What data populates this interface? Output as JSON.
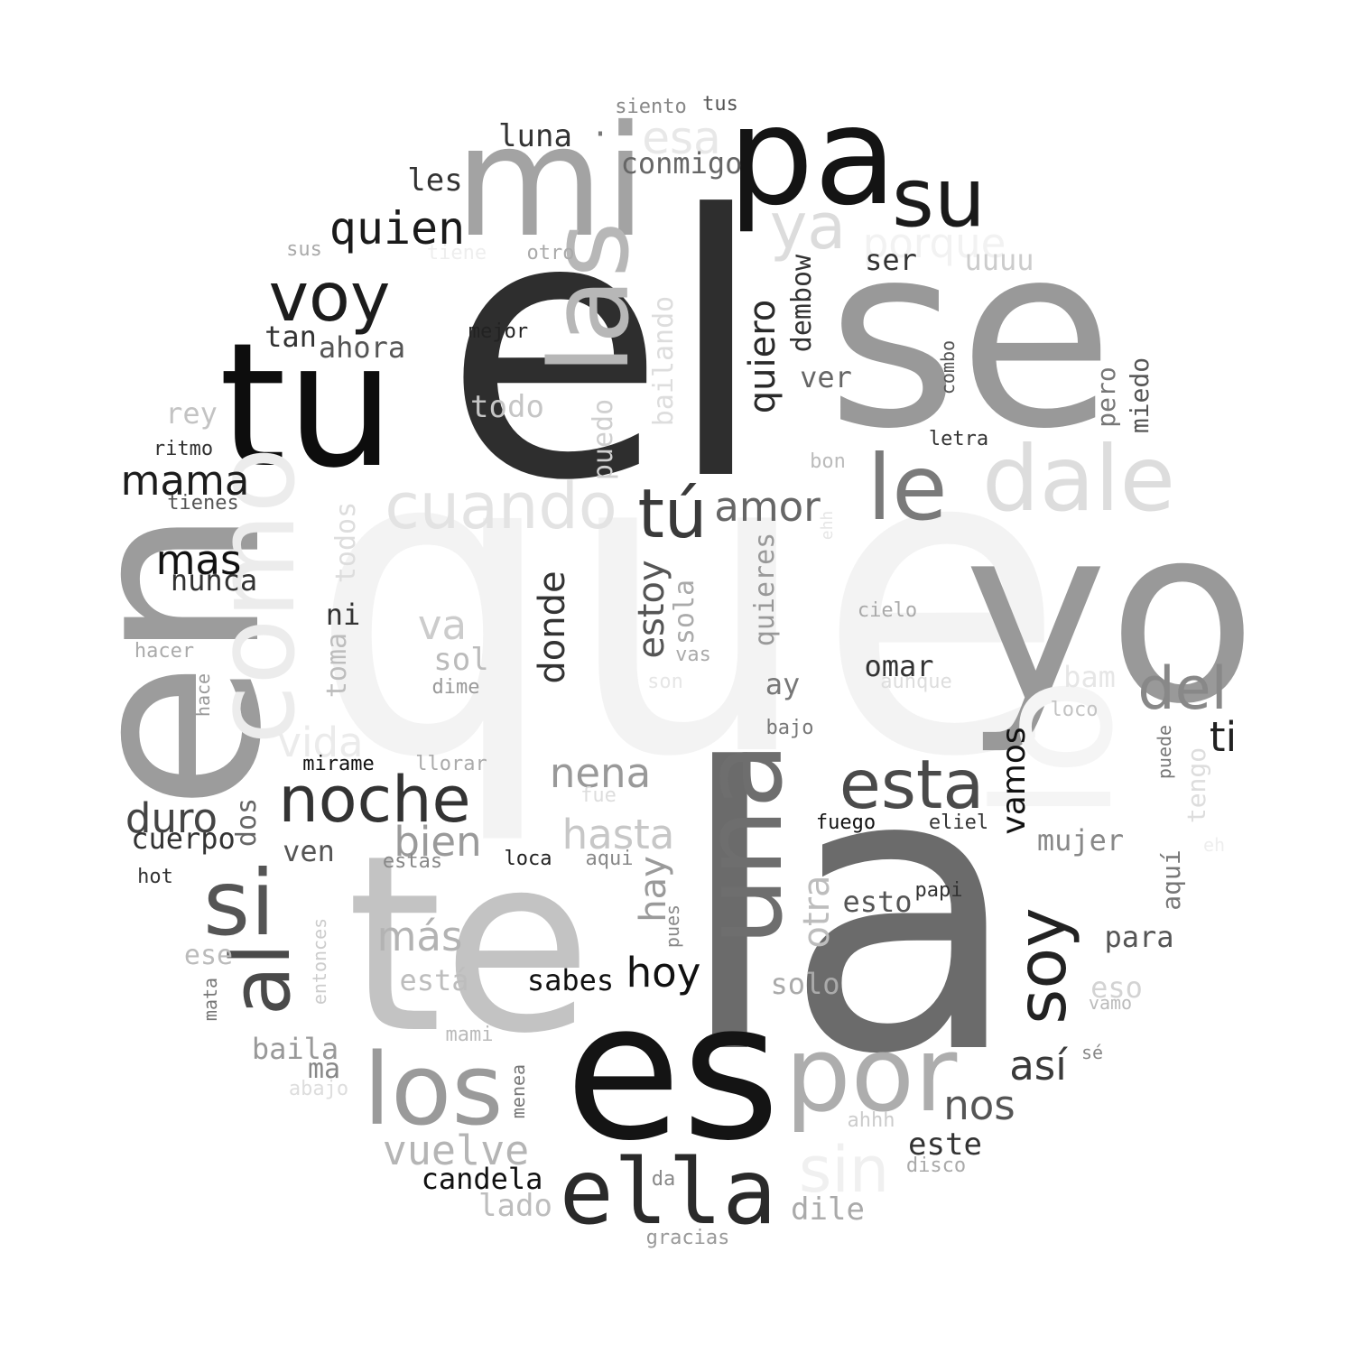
{
  "words": [
    {
      "t": "que",
      "c": "#f3f3f3"
    },
    {
      "t": "el",
      "c": "#2e2e2e"
    },
    {
      "t": "la",
      "c": "#6b6b6b"
    },
    {
      "t": "yo",
      "c": "#999999"
    },
    {
      "t": "se",
      "c": "#999999"
    },
    {
      "t": "en",
      "c": "#9c9c9c"
    },
    {
      "t": "te",
      "c": "#c3c3c3"
    },
    {
      "t": "tu",
      "c": "#0d0d0d"
    },
    {
      "t": "es",
      "c": "#141414"
    },
    {
      "t": "mi",
      "c": "#a3a3a3"
    },
    {
      "t": "pa",
      "c": "#141414"
    },
    {
      "t": "lo",
      "c": "#f5f5f5"
    },
    {
      "t": "como",
      "c": "#ececec"
    },
    {
      "t": "las",
      "c": "#b7b7b7"
    },
    {
      "t": "una",
      "c": "#6e6e6e"
    },
    {
      "t": "por",
      "c": "#adadad"
    },
    {
      "t": "los",
      "c": "#9a9a9a"
    },
    {
      "t": "ella",
      "c": "#2a2a2a"
    },
    {
      "t": "dale",
      "c": "#dddddd"
    },
    {
      "t": "le",
      "c": "#7a7a7a"
    },
    {
      "t": "su",
      "c": "#1a1a1a"
    },
    {
      "t": "si",
      "c": "#555555"
    },
    {
      "t": "al",
      "c": "#4a4a4a"
    },
    {
      "t": "cuando",
      "c": "#e3e3e3"
    },
    {
      "t": "ya",
      "c": "#dcdcdc"
    },
    {
      "t": "voy",
      "c": "#1c1c1c"
    },
    {
      "t": "esta",
      "c": "#4a4a4a"
    },
    {
      "t": "noche",
      "c": "#333333"
    },
    {
      "t": "tú",
      "c": "#3a3a3a"
    },
    {
      "t": "soy",
      "c": "#222222"
    },
    {
      "t": "del",
      "c": "#888888"
    },
    {
      "t": "quien",
      "c": "#1a1a1a"
    },
    {
      "t": "esa",
      "c": "#e8e8e8"
    },
    {
      "t": "porque",
      "c": "#f2f2f2"
    },
    {
      "t": "sin",
      "c": "#f0f0f0"
    },
    {
      "t": "mama",
      "c": "#1c1c1c"
    },
    {
      "t": "amor",
      "c": "#666666"
    },
    {
      "t": "mas",
      "c": "#111111"
    },
    {
      "t": "vuelve",
      "c": "#b5b5b5"
    },
    {
      "t": "donde",
      "c": "#333333"
    },
    {
      "t": "estoy",
      "c": "#555555"
    },
    {
      "t": "quiero",
      "c": "#2a2a2a"
    },
    {
      "t": "duro",
      "c": "#444444"
    },
    {
      "t": "hasta",
      "c": "#c7c7c7"
    },
    {
      "t": "bien",
      "c": "#9a9a9a"
    },
    {
      "t": "nena",
      "c": "#999999"
    },
    {
      "t": "vida",
      "c": "#ebebeb"
    },
    {
      "t": "así",
      "c": "#3a3a3a"
    },
    {
      "t": "nos",
      "c": "#555555"
    },
    {
      "t": "hoy",
      "c": "#111111"
    },
    {
      "t": "va",
      "c": "#cccccc"
    },
    {
      "t": "más",
      "c": "#b3b3b3"
    },
    {
      "t": "hay",
      "c": "#9a9a9a"
    },
    {
      "t": "otra",
      "c": "#bdbdbd"
    },
    {
      "t": "vamos",
      "c": "#111111"
    },
    {
      "t": "ti",
      "c": "#222222"
    },
    {
      "t": "todo",
      "c": "#c5c5c5"
    },
    {
      "t": "ahora",
      "c": "#555555"
    },
    {
      "t": "nunca",
      "c": "#333333"
    },
    {
      "t": "luna",
      "c": "#333333"
    },
    {
      "t": "conmigo",
      "c": "#666666"
    },
    {
      "t": "les",
      "c": "#333333"
    },
    {
      "t": "candela",
      "c": "#111111"
    },
    {
      "t": "lado",
      "c": "#bdbdbd"
    },
    {
      "t": "dile",
      "c": "#aaaaaa"
    },
    {
      "t": "baila",
      "c": "#999999"
    },
    {
      "t": "este",
      "c": "#333333"
    },
    {
      "t": "cuerpo",
      "c": "#333333"
    },
    {
      "t": "sabes",
      "c": "#111111"
    },
    {
      "t": "para",
      "c": "#555555"
    },
    {
      "t": "solo",
      "c": "#aaaaaa"
    },
    {
      "t": "mujer",
      "c": "#888888"
    },
    {
      "t": "sol",
      "c": "#bbbbbb"
    },
    {
      "t": "está",
      "c": "#bdbdbd"
    },
    {
      "t": "ser",
      "c": "#333333"
    },
    {
      "t": "uuuu",
      "c": "#cccccc"
    },
    {
      "t": "ver",
      "c": "#666666"
    },
    {
      "t": "ay",
      "c": "#777777"
    },
    {
      "t": "omar",
      "c": "#333333"
    },
    {
      "t": "bam",
      "c": "#e6e6e6"
    },
    {
      "t": "esto",
      "c": "#555555"
    },
    {
      "t": "eso",
      "c": "#d3d3d3"
    },
    {
      "t": "tan",
      "c": "#333333"
    },
    {
      "t": "ven",
      "c": "#555555"
    },
    {
      "t": "rey",
      "c": "#c3c3c3"
    },
    {
      "t": "ni",
      "c": "#333333"
    },
    {
      "t": "bailando",
      "c": "#dddddd"
    },
    {
      "t": "puedo",
      "c": "#cfcfcf"
    },
    {
      "t": "quieres",
      "c": "#999999"
    },
    {
      "t": "dembow",
      "c": "#333333"
    },
    {
      "t": "sola",
      "c": "#aaaaaa"
    },
    {
      "t": "toma",
      "c": "#bdbdbd"
    },
    {
      "t": "todos",
      "c": "#dddddd"
    },
    {
      "t": "dos",
      "c": "#666666"
    },
    {
      "t": "pero",
      "c": "#777777"
    },
    {
      "t": "miedo",
      "c": "#555555"
    },
    {
      "t": "aquí",
      "c": "#777777"
    },
    {
      "t": "tengo",
      "c": "#dddddd"
    },
    {
      "t": "ese",
      "c": "#bbbbbb"
    },
    {
      "t": "ma",
      "c": "#888888"
    },
    {
      "t": "siento",
      "c": "#888888"
    },
    {
      "t": "tus",
      "c": "#555555"
    },
    {
      "t": "mejor",
      "c": "#222222"
    },
    {
      "t": "tiene",
      "c": "#eeeeee"
    },
    {
      "t": "otro",
      "c": "#aaaaaa"
    },
    {
      "t": "sus",
      "c": "#aaaaaa"
    },
    {
      "t": "ritmo",
      "c": "#333333"
    },
    {
      "t": "tienes",
      "c": "#555555"
    },
    {
      "t": "hacer",
      "c": "#aaaaaa"
    },
    {
      "t": "hace",
      "c": "#999999"
    },
    {
      "t": "mirame",
      "c": "#111111"
    },
    {
      "t": "llorar",
      "c": "#aaaaaa"
    },
    {
      "t": "estas",
      "c": "#888888"
    },
    {
      "t": "loca",
      "c": "#222222"
    },
    {
      "t": "aqui",
      "c": "#888888"
    },
    {
      "t": "hot",
      "c": "#333333"
    },
    {
      "t": "entonces",
      "c": "#cccccc"
    },
    {
      "t": "pues",
      "c": "#888888"
    },
    {
      "t": "mata",
      "c": "#777777"
    },
    {
      "t": "mami",
      "c": "#bbbbbb"
    },
    {
      "t": "menea",
      "c": "#777777"
    },
    {
      "t": "abajo",
      "c": "#dddddd"
    },
    {
      "t": "dime",
      "c": "#999999"
    },
    {
      "t": "vas",
      "c": "#aaaaaa"
    },
    {
      "t": "son",
      "c": "#e6e6e6"
    },
    {
      "t": "fue",
      "c": "#dddddd"
    },
    {
      "t": "cielo",
      "c": "#aaaaaa"
    },
    {
      "t": "aunque",
      "c": "#dddddd"
    },
    {
      "t": "loco",
      "c": "#c3c3c3"
    },
    {
      "t": "puede",
      "c": "#777777"
    },
    {
      "t": "eh",
      "c": "#eeeeee"
    },
    {
      "t": "ehh",
      "c": "#e6e6e6"
    },
    {
      "t": "bajo",
      "c": "#777777"
    },
    {
      "t": "fuego",
      "c": "#111111"
    },
    {
      "t": "eliel",
      "c": "#333333"
    },
    {
      "t": "papi",
      "c": "#333333"
    },
    {
      "t": "vamo",
      "c": "#bbbbbb"
    },
    {
      "t": "sé",
      "c": "#888888"
    },
    {
      "t": "ahhh",
      "c": "#cccccc"
    },
    {
      "t": "disco",
      "c": "#aaaaaa"
    },
    {
      "t": "da",
      "c": "#888888"
    },
    {
      "t": "gracias",
      "c": "#999999"
    },
    {
      "t": "letra",
      "c": "#333333"
    },
    {
      "t": "combo",
      "c": "#555555"
    },
    {
      "t": "bon",
      "c": "#bbbbbb"
    },
    {
      "t": "·",
      "c": "#777777"
    }
  ]
}
